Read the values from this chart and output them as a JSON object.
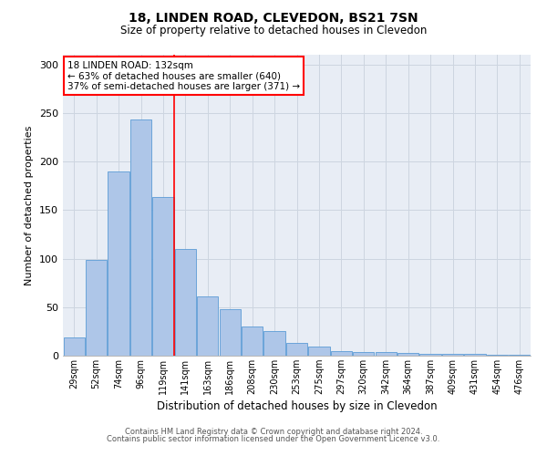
{
  "title_line1": "18, LINDEN ROAD, CLEVEDON, BS21 7SN",
  "title_line2": "Size of property relative to detached houses in Clevedon",
  "xlabel": "Distribution of detached houses by size in Clevedon",
  "ylabel": "Number of detached properties",
  "categories": [
    "29sqm",
    "52sqm",
    "74sqm",
    "96sqm",
    "119sqm",
    "141sqm",
    "163sqm",
    "186sqm",
    "208sqm",
    "230sqm",
    "253sqm",
    "275sqm",
    "297sqm",
    "320sqm",
    "342sqm",
    "364sqm",
    "387sqm",
    "409sqm",
    "431sqm",
    "454sqm",
    "476sqm"
  ],
  "values": [
    19,
    99,
    190,
    243,
    163,
    110,
    61,
    48,
    30,
    25,
    13,
    9,
    5,
    4,
    4,
    3,
    2,
    2,
    2,
    1,
    1
  ],
  "bar_color": "#aec6e8",
  "bar_edge_color": "#5b9bd5",
  "property_label": "18 LINDEN ROAD: 132sqm",
  "annotation_line1": "← 63% of detached houses are smaller (640)",
  "annotation_line2": "37% of semi-detached houses are larger (371) →",
  "annotation_box_color": "white",
  "annotation_box_edge_color": "red",
  "vline_color": "red",
  "vline_x_index": 4.5,
  "grid_color": "#cdd5e0",
  "bg_color": "#e8edf5",
  "ylim": [
    0,
    310
  ],
  "yticks": [
    0,
    50,
    100,
    150,
    200,
    250,
    300
  ],
  "footer_line1": "Contains HM Land Registry data © Crown copyright and database right 2024.",
  "footer_line2": "Contains public sector information licensed under the Open Government Licence v3.0."
}
